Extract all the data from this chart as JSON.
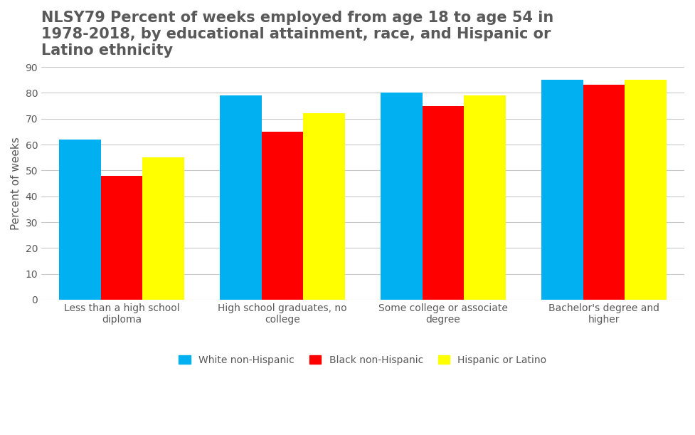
{
  "title": "NLSY79 Percent of weeks employed from age 18 to age 54 in\n1978-2018, by educational attainment, race, and Hispanic or\nLatino ethnicity",
  "ylabel": "Percent of weeks",
  "categories": [
    "Less than a high school\ndiploma",
    "High school graduates, no\ncollege",
    "Some college or associate\ndegree",
    "Bachelor's degree and\nhigher"
  ],
  "series": {
    "White non-Hispanic": [
      62,
      79,
      80,
      85
    ],
    "Black non-Hispanic": [
      48,
      65,
      75,
      83
    ],
    "Hispanic or Latino": [
      55,
      72,
      79,
      85
    ]
  },
  "colors": {
    "White non-Hispanic": "#00B0F0",
    "Black non-Hispanic": "#FF0000",
    "Hispanic or Latino": "#FFFF00"
  },
  "ylim": [
    0,
    90
  ],
  "yticks": [
    0,
    10,
    20,
    30,
    40,
    50,
    60,
    70,
    80,
    90
  ],
  "bar_width": 0.26,
  "background_color": "#FFFFFF",
  "grid_color": "#C8C8C8",
  "title_fontsize": 15,
  "title_color": "#595959",
  "axis_label_fontsize": 11,
  "tick_fontsize": 10,
  "tick_color": "#595959",
  "legend_fontsize": 10
}
